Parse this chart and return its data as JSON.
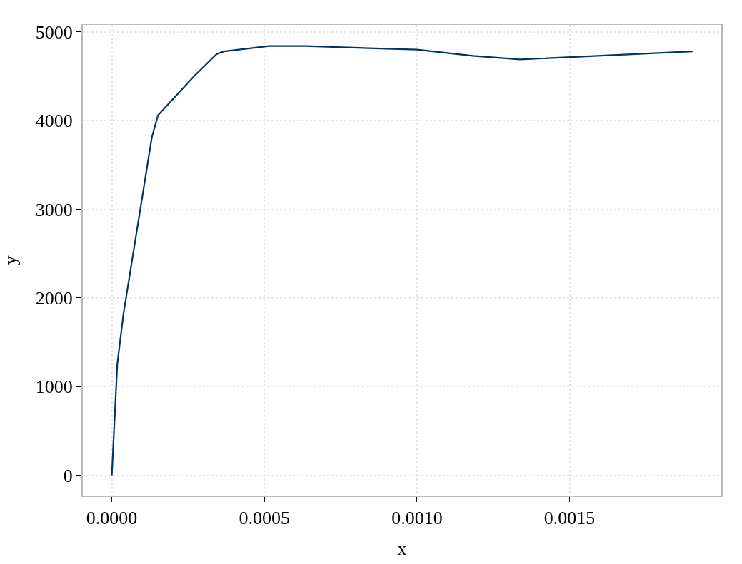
{
  "chart_data": {
    "type": "line",
    "xlabel": "x",
    "ylabel": "y",
    "x": [
      0,
      1.8e-05,
      3.8e-05,
      0.000131,
      0.000151,
      0.000269,
      0.000343,
      0.000367,
      0.000515,
      0.000635,
      0.001,
      0.001183,
      0.001338,
      0.001903
    ],
    "series": [
      {
        "color": "#003366",
        "values": [
          0,
          1260,
          1820,
          3810,
          4060,
          4500,
          4750,
          4780,
          4840,
          4840,
          4800,
          4730,
          4690,
          4780
        ]
      }
    ],
    "xlim": [
      -9.5e-05,
      0.001997
    ],
    "ylim": [
      -228,
      5079
    ],
    "xticks": [
      {
        "value": 0,
        "label": "0.0000"
      },
      {
        "value": 0.0005,
        "label": "0.0005"
      },
      {
        "value": 0.001,
        "label": "0.0010"
      },
      {
        "value": 0.0015,
        "label": "0.0015"
      }
    ],
    "yticks": [
      0,
      1000,
      2000,
      3000,
      4000,
      5000
    ],
    "grid": true,
    "marker": "none",
    "line_style": "solid"
  }
}
